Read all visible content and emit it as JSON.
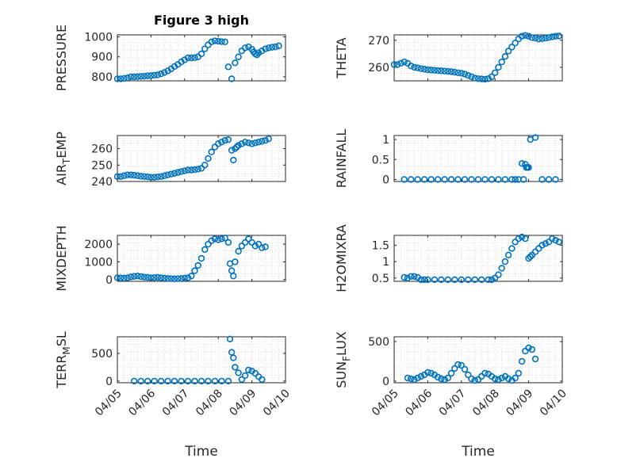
{
  "figure_title": "Figure 3 high",
  "colors": {
    "marker": "#0072BD",
    "axis": "#262626",
    "grid": "#d9d9d9"
  },
  "chart_data": [
    {
      "id": "pressure",
      "type": "scatter",
      "ylabel": "PRESSURE",
      "ylabel_sub": "",
      "ylim": [
        780,
        1010
      ],
      "yticks": [
        800,
        900,
        1000
      ],
      "ytick_labels": [
        "800",
        "900",
        "1000"
      ],
      "xlim": [
        0,
        5
      ],
      "grid": true,
      "x": [
        0.0,
        0.1,
        0.2,
        0.3,
        0.4,
        0.5,
        0.6,
        0.7,
        0.8,
        0.9,
        1.0,
        1.1,
        1.2,
        1.3,
        1.4,
        1.5,
        1.6,
        1.7,
        1.8,
        1.9,
        2.0,
        2.1,
        2.2,
        2.3,
        2.4,
        2.5,
        2.6,
        2.7,
        2.8,
        2.9,
        3.0,
        3.1,
        3.2,
        3.3,
        3.4,
        3.5,
        3.6,
        3.7,
        3.8,
        3.9,
        4.0,
        4.05,
        4.1,
        4.15,
        4.2,
        4.3,
        4.4,
        4.5,
        4.6,
        4.7,
        4.8
      ],
      "y": [
        790,
        790,
        792,
        795,
        800,
        800,
        801,
        802,
        803,
        805,
        806,
        808,
        810,
        815,
        822,
        830,
        840,
        852,
        862,
        875,
        885,
        895,
        895,
        896,
        900,
        915,
        940,
        960,
        975,
        980,
        978,
        976,
        975,
        850,
        790,
        870,
        900,
        930,
        945,
        950,
        938,
        925,
        915,
        910,
        920,
        930,
        940,
        945,
        948,
        950,
        955
      ]
    },
    {
      "id": "theta",
      "type": "scatter",
      "ylabel": "THETA",
      "ylabel_sub": "",
      "ylim": [
        255,
        272
      ],
      "yticks": [
        260,
        270
      ],
      "ytick_labels": [
        "260",
        "270"
      ],
      "xlim": [
        0,
        5
      ],
      "grid": true,
      "x": [
        0.0,
        0.1,
        0.2,
        0.3,
        0.4,
        0.5,
        0.6,
        0.7,
        0.8,
        0.9,
        1.0,
        1.1,
        1.2,
        1.3,
        1.4,
        1.5,
        1.6,
        1.7,
        1.8,
        1.9,
        2.0,
        2.1,
        2.2,
        2.3,
        2.4,
        2.5,
        2.6,
        2.7,
        2.8,
        2.9,
        3.0,
        3.1,
        3.2,
        3.3,
        3.4,
        3.5,
        3.6,
        3.7,
        3.8,
        3.9,
        4.0,
        4.1,
        4.2,
        4.3,
        4.4,
        4.5,
        4.6,
        4.7,
        4.8,
        4.9
      ],
      "y": [
        261,
        261,
        261.5,
        262,
        261.5,
        260.5,
        260,
        259.8,
        259.5,
        259.3,
        259.1,
        259,
        258.9,
        258.8,
        258.7,
        258.6,
        258.5,
        258.4,
        258.2,
        258,
        257.8,
        257.5,
        257,
        256.5,
        256,
        255.8,
        255.7,
        255.6,
        255.8,
        256.5,
        258,
        260,
        262,
        264,
        266,
        267.5,
        269,
        270.5,
        271.5,
        271.8,
        271.5,
        271,
        270.8,
        270.5,
        270.6,
        270.8,
        271,
        271.3,
        271.5,
        271.6
      ]
    },
    {
      "id": "air_temp",
      "type": "scatter",
      "ylabel": "AIR",
      "ylabel_sub": "T",
      "ylabel_suffix": "EMP",
      "ylim": [
        240,
        268
      ],
      "yticks": [
        240,
        250,
        260
      ],
      "ytick_labels": [
        "240",
        "250",
        "260"
      ],
      "xlim": [
        0,
        5
      ],
      "grid": true,
      "x": [
        0.0,
        0.1,
        0.2,
        0.3,
        0.4,
        0.5,
        0.6,
        0.7,
        0.8,
        0.9,
        1.0,
        1.1,
        1.2,
        1.3,
        1.4,
        1.5,
        1.6,
        1.7,
        1.8,
        1.9,
        2.0,
        2.1,
        2.2,
        2.3,
        2.4,
        2.5,
        2.6,
        2.7,
        2.8,
        2.9,
        3.0,
        3.1,
        3.2,
        3.3,
        3.4,
        3.45,
        3.5,
        3.55,
        3.6,
        3.7,
        3.8,
        3.9,
        4.0,
        4.1,
        4.2,
        4.3,
        4.4,
        4.5
      ],
      "y": [
        243,
        243,
        243.5,
        244,
        244,
        243.8,
        243.5,
        243.2,
        243,
        242.8,
        242.5,
        242.5,
        242.8,
        243,
        243.5,
        244,
        244.5,
        245,
        245.5,
        246,
        246.5,
        247,
        247,
        247.2,
        247.5,
        248,
        250,
        254,
        258,
        261,
        263,
        264,
        265,
        265.5,
        259,
        253,
        260,
        261,
        262,
        263,
        264,
        263.5,
        263,
        263.5,
        264,
        264.5,
        265,
        266
      ]
    },
    {
      "id": "rainfall",
      "type": "scatter",
      "ylabel": "RAINFALL",
      "ylabel_sub": "",
      "ylim": [
        -0.05,
        1.1
      ],
      "yticks": [
        0,
        0.5,
        1
      ],
      "ytick_labels": [
        "0",
        "0.5",
        "1"
      ],
      "xlim": [
        0,
        5
      ],
      "grid": true,
      "x": [
        0.3,
        0.5,
        0.7,
        0.9,
        1.1,
        1.3,
        1.5,
        1.7,
        1.9,
        2.1,
        2.3,
        2.5,
        2.7,
        2.9,
        3.1,
        3.3,
        3.5,
        3.6,
        3.7,
        3.8,
        3.85,
        3.9,
        3.93,
        3.96,
        4.0,
        4.05,
        4.2,
        4.4,
        4.6,
        4.8
      ],
      "y": [
        0,
        0,
        0,
        0,
        0,
        0,
        0,
        0,
        0,
        0,
        0,
        0,
        0,
        0,
        0,
        0,
        0,
        0,
        0,
        0.4,
        0,
        0.38,
        0.3,
        0.3,
        0.3,
        1.0,
        1.05,
        0,
        0,
        0
      ]
    },
    {
      "id": "mixdepth",
      "type": "scatter",
      "ylabel": "MIXDEPTH",
      "ylabel_sub": "",
      "ylim": [
        -100,
        2500
      ],
      "yticks": [
        0,
        1000,
        2000
      ],
      "ytick_labels": [
        "0",
        "1000",
        "2000"
      ],
      "xlim": [
        0,
        5
      ],
      "grid": true,
      "x": [
        0.0,
        0.1,
        0.2,
        0.3,
        0.4,
        0.5,
        0.6,
        0.7,
        0.8,
        0.9,
        1.0,
        1.1,
        1.2,
        1.3,
        1.4,
        1.5,
        1.6,
        1.7,
        1.8,
        1.9,
        2.0,
        2.1,
        2.2,
        2.3,
        2.4,
        2.5,
        2.6,
        2.7,
        2.8,
        2.9,
        3.0,
        3.1,
        3.2,
        3.3,
        3.35,
        3.4,
        3.45,
        3.5,
        3.6,
        3.7,
        3.8,
        3.9,
        4.0,
        4.1,
        4.2,
        4.3,
        4.4
      ],
      "y": [
        100,
        90,
        80,
        100,
        150,
        180,
        200,
        170,
        140,
        120,
        100,
        110,
        120,
        100,
        80,
        60,
        50,
        40,
        50,
        60,
        80,
        100,
        200,
        500,
        800,
        1200,
        1700,
        2000,
        2200,
        2300,
        2250,
        2300,
        2350,
        2100,
        900,
        500,
        200,
        1000,
        1600,
        1900,
        2100,
        2300,
        2100,
        1900,
        2000,
        1800,
        1850
      ]
    },
    {
      "id": "h2omixra",
      "type": "scatter",
      "ylabel": "H2OMIXRA",
      "ylabel_sub": "",
      "ylim": [
        0.4,
        1.8
      ],
      "yticks": [
        0.5,
        1,
        1.5
      ],
      "ytick_labels": [
        "0.5",
        "1",
        "1.5"
      ],
      "xlim": [
        0,
        5
      ],
      "grid": true,
      "x": [
        0.3,
        0.4,
        0.5,
        0.6,
        0.7,
        0.8,
        0.9,
        1.0,
        1.2,
        1.4,
        1.6,
        1.8,
        2.0,
        2.2,
        2.4,
        2.6,
        2.8,
        2.9,
        3.0,
        3.1,
        3.2,
        3.3,
        3.4,
        3.5,
        3.6,
        3.7,
        3.8,
        3.9,
        4.0,
        4.05,
        4.1,
        4.2,
        4.3,
        4.4,
        4.5,
        4.6,
        4.7,
        4.8,
        4.9
      ],
      "y": [
        0.52,
        0.5,
        0.55,
        0.55,
        0.52,
        0.45,
        0.45,
        0.45,
        0.45,
        0.45,
        0.45,
        0.45,
        0.45,
        0.45,
        0.45,
        0.45,
        0.45,
        0.45,
        0.5,
        0.6,
        0.8,
        1.0,
        1.2,
        1.4,
        1.6,
        1.7,
        1.75,
        1.7,
        1.1,
        1.15,
        1.2,
        1.3,
        1.4,
        1.5,
        1.55,
        1.6,
        1.7,
        1.65,
        1.6
      ]
    },
    {
      "id": "terr_msl",
      "type": "scatter",
      "ylabel": "TERR",
      "ylabel_sub": "M",
      "ylabel_suffix": "SL",
      "ylim": [
        -30,
        800
      ],
      "yticks": [
        0,
        500
      ],
      "ytick_labels": [
        "0",
        "500"
      ],
      "xlim": [
        0,
        5
      ],
      "grid": true,
      "x": [
        0.5,
        0.7,
        0.9,
        1.1,
        1.3,
        1.5,
        1.7,
        1.9,
        2.1,
        2.3,
        2.5,
        2.7,
        2.9,
        3.1,
        3.3,
        3.35,
        3.4,
        3.45,
        3.5,
        3.6,
        3.7,
        3.8,
        3.9,
        4.0,
        4.1,
        4.2,
        4.3
      ],
      "y": [
        0,
        0,
        0,
        0,
        0,
        0,
        0,
        0,
        0,
        0,
        0,
        0,
        0,
        0,
        0,
        760,
        520,
        420,
        250,
        150,
        30,
        100,
        200,
        180,
        140,
        80,
        30
      ]
    },
    {
      "id": "sun_flux",
      "type": "scatter",
      "ylabel": "SUN",
      "ylabel_sub": "F",
      "ylabel_suffix": "LUX",
      "ylim": [
        -20,
        560
      ],
      "yticks": [
        0,
        500
      ],
      "ytick_labels": [
        "0",
        "500"
      ],
      "xlim": [
        0,
        5
      ],
      "grid": true,
      "x": [
        0.4,
        0.5,
        0.6,
        0.7,
        0.8,
        0.9,
        1.0,
        1.1,
        1.2,
        1.3,
        1.4,
        1.5,
        1.6,
        1.7,
        1.8,
        1.9,
        2.0,
        2.1,
        2.2,
        2.3,
        2.4,
        2.5,
        2.6,
        2.7,
        2.8,
        2.9,
        3.0,
        3.1,
        3.2,
        3.3,
        3.4,
        3.5,
        3.6,
        3.7,
        3.8,
        3.9,
        4.0,
        4.1,
        4.2
      ],
      "y": [
        40,
        30,
        20,
        40,
        60,
        80,
        110,
        100,
        80,
        50,
        30,
        20,
        40,
        100,
        160,
        210,
        200,
        150,
        80,
        30,
        10,
        20,
        60,
        100,
        90,
        60,
        30,
        20,
        40,
        60,
        30,
        10,
        40,
        100,
        250,
        380,
        420,
        400,
        280
      ]
    }
  ],
  "x_axis": {
    "tick_labels": [
      "04/05",
      "04/06",
      "04/07",
      "04/08",
      "04/09",
      "04/10"
    ],
    "xlabel": "Time"
  }
}
